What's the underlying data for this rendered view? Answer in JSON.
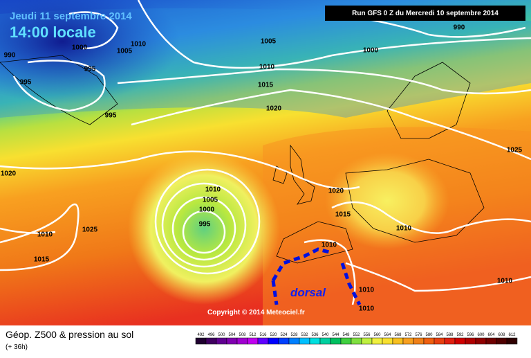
{
  "header": {
    "date": "Jeudi 11 septembre 2014",
    "time": "14:00 locale",
    "run": "Run GFS 0 Z du Mercredi 10 septembre 2014"
  },
  "isobar_labels": [
    "990",
    "1000",
    "1005",
    "1010",
    "995",
    "995",
    "995",
    "1005",
    "1010",
    "1015",
    "1020",
    "1000",
    "990",
    "1025",
    "1020",
    "1010",
    "1005",
    "1000",
    "995",
    "1025",
    "1010",
    "1015",
    "1020",
    "1015",
    "1010",
    "1010",
    "1010",
    "1010",
    "1010"
  ],
  "annotation": "dorsal",
  "copyright": "Copyright © 2014 Meteociel.fr",
  "footer": {
    "title": "Géop. Z500 & pression au sol",
    "lead": "(+ 36h)"
  },
  "scale": [
    492,
    496,
    500,
    504,
    508,
    512,
    516,
    520,
    524,
    528,
    532,
    536,
    540,
    544,
    548,
    552,
    556,
    560,
    564,
    568,
    572,
    576,
    580,
    584,
    588,
    592,
    596,
    600,
    604,
    608,
    612
  ]
}
